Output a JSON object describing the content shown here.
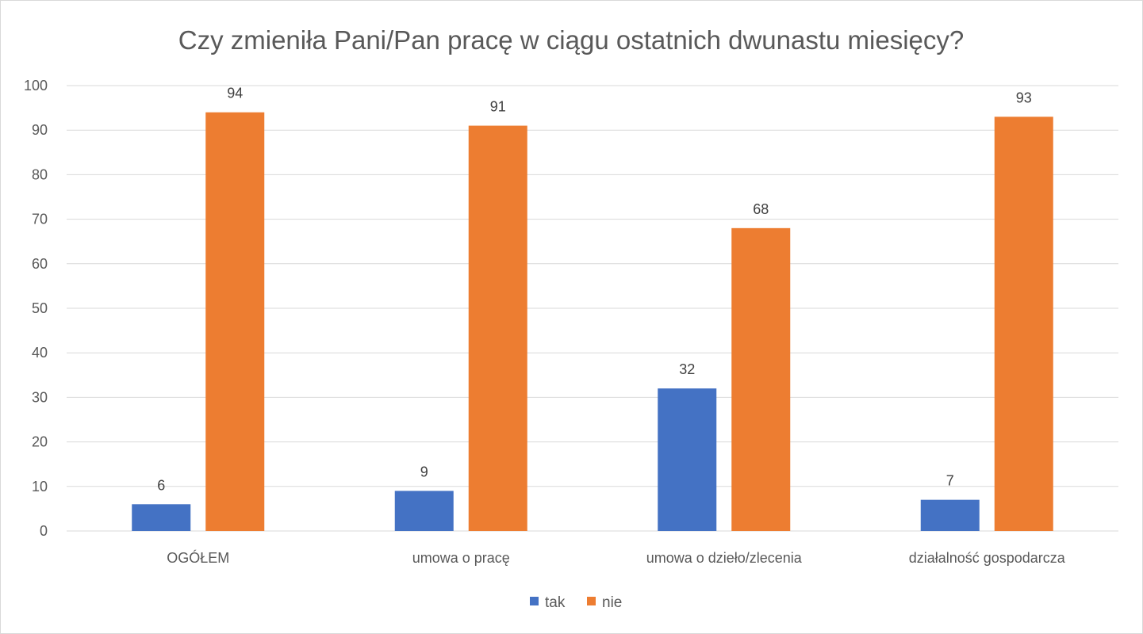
{
  "chart_data": {
    "type": "bar",
    "title": "Czy zmieniła Pani/Pan pracę w ciągu ostatnich dwunastu miesięcy?",
    "xlabel": "",
    "ylabel": "",
    "categories": [
      "OGÓŁEM",
      "umowa o pracę",
      "umowa o dzieło/zlecenia",
      "działalność gospodarcza"
    ],
    "series": [
      {
        "name": "tak",
        "color": "#4472c4",
        "values": [
          6,
          9,
          32,
          7
        ]
      },
      {
        "name": "nie",
        "color": "#ed7d31",
        "values": [
          94,
          91,
          68,
          93
        ]
      }
    ],
    "ylim": [
      0,
      100
    ],
    "yticks": [
      0,
      10,
      20,
      30,
      40,
      50,
      60,
      70,
      80,
      90,
      100
    ],
    "grid": true,
    "data_labels": true,
    "legend_position": "bottom"
  }
}
